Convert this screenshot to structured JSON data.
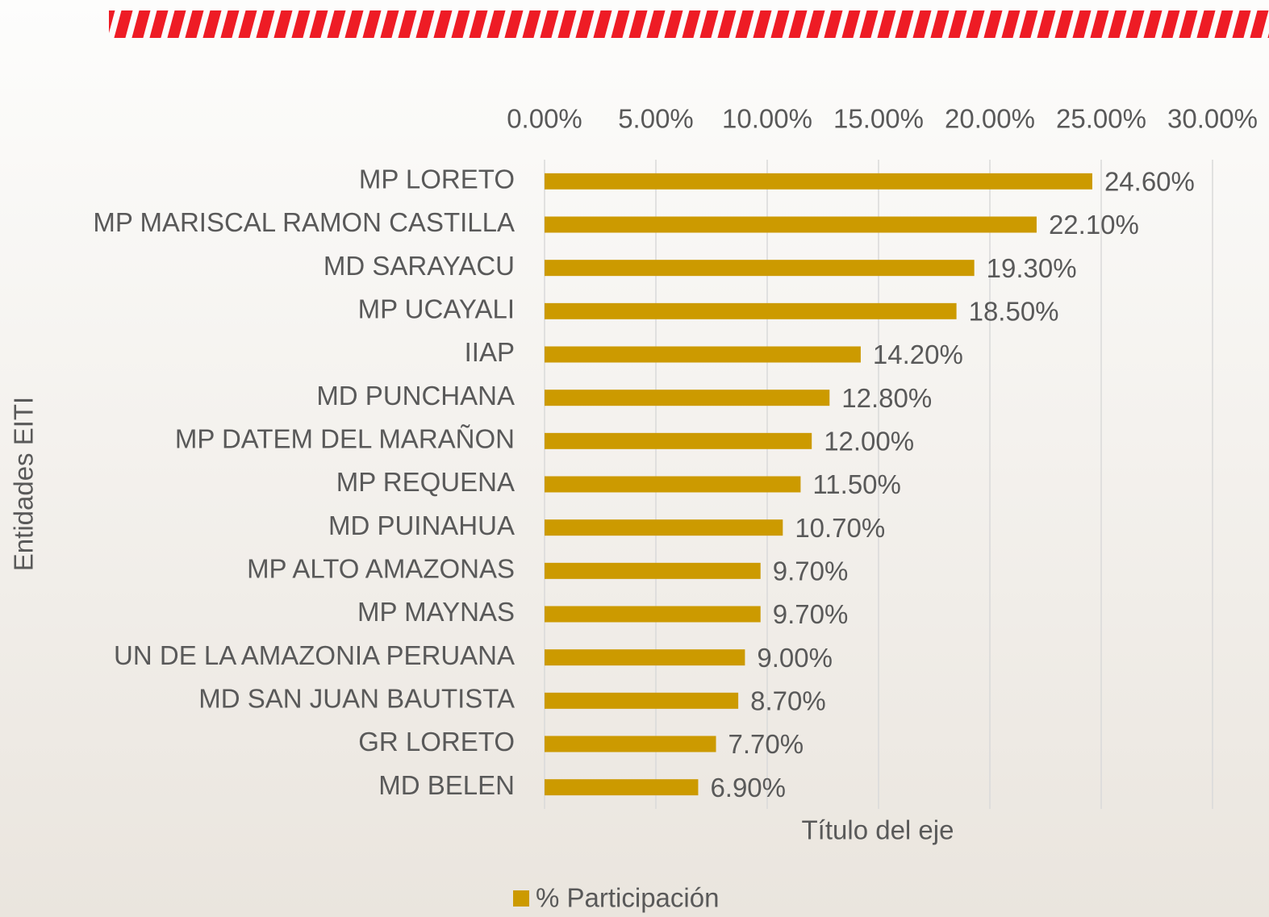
{
  "chart_data": {
    "type": "hbar",
    "categories": [
      "MP LORETO",
      "MP MARISCAL RAMON CASTILLA",
      "MD SARAYACU",
      "MP UCAYALI",
      "IIAP",
      "MD PUNCHANA",
      "MP DATEM DEL MARAÑON",
      "MP REQUENA",
      "MD PUINAHUA",
      "MP ALTO AMAZONAS",
      "MP MAYNAS",
      "UN DE LA AMAZONIA PERUANA",
      "MD SAN JUAN BAUTISTA",
      "GR LORETO",
      "MD BELEN"
    ],
    "series": [
      {
        "name": "% Participación",
        "color": "#cc9a00",
        "values": [
          24.6,
          22.1,
          19.3,
          18.5,
          14.2,
          12.8,
          12.0,
          11.5,
          10.7,
          9.7,
          9.7,
          9.0,
          8.7,
          7.7,
          6.9
        ],
        "value_labels": [
          "24.60%",
          "22.10%",
          "19.30%",
          "18.50%",
          "14.20%",
          "12.80%",
          "12.00%",
          "11.50%",
          "10.70%",
          "9.70%",
          "9.70%",
          "9.00%",
          "8.70%",
          "7.70%",
          "6.90%"
        ]
      }
    ],
    "xlim": [
      0,
      30
    ],
    "xticks": [
      {
        "value": 0,
        "label": "0.00%"
      },
      {
        "value": 5,
        "label": "5.00%"
      },
      {
        "value": 10,
        "label": "10.00%"
      },
      {
        "value": 15,
        "label": "15.00%"
      },
      {
        "value": 20,
        "label": "20.00%"
      },
      {
        "value": 25,
        "label": "25.00%"
      },
      {
        "value": 30,
        "label": "30.00%"
      }
    ],
    "x_label": "Título del eje",
    "y_label": "Entidades EITI",
    "grid": true,
    "legend": "bottom"
  }
}
